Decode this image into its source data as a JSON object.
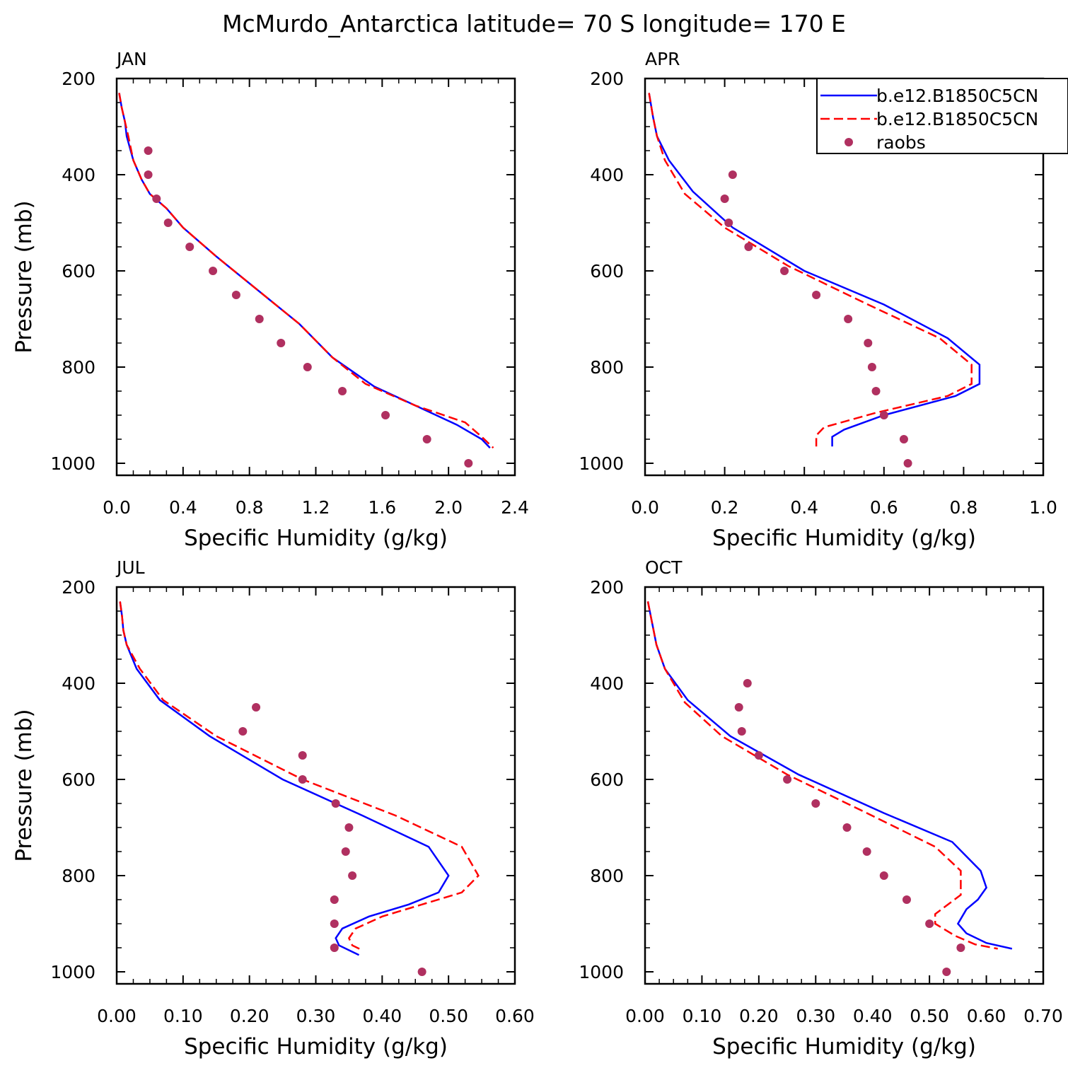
{
  "title": "McMurdo_Antarctica  latitude= 70 S longitude= 170 E",
  "legend": {
    "placement": "top-right of APR panel",
    "entries": [
      {
        "label": "b.e12.B1850C5CN",
        "style": "solid",
        "color": "#0000ff"
      },
      {
        "label": "b.e12.B1850C5CN",
        "style": "dashed",
        "color": "#ff0000"
      },
      {
        "label": "raobs",
        "style": "marker",
        "color": "#b03060"
      }
    ]
  },
  "chart_data": [
    {
      "type": "line",
      "panel": "JAN",
      "xlabel": "Specific Humidity (g/kg)",
      "ylabel": "Pressure (mb)",
      "xlim": [
        0.0,
        2.4
      ],
      "ylim": [
        1025,
        200
      ],
      "xticks": [
        0.0,
        0.4,
        0.8,
        1.2,
        1.6,
        2.0,
        2.4
      ],
      "xtick_labels": [
        "0.0",
        "0.4",
        "0.8",
        "1.2",
        "1.6",
        "2.0",
        "2.4"
      ],
      "yticks": [
        200,
        400,
        600,
        800,
        1000
      ],
      "ytick_labels": [
        "200",
        "400",
        "600",
        "800",
        "1000"
      ],
      "series": [
        {
          "name": "b.e12.B1850C5CN",
          "kind": "solid",
          "color": "#0000ff",
          "points": [
            [
              0.015,
              230
            ],
            [
              0.03,
              260
            ],
            [
              0.05,
              290
            ],
            [
              0.06,
              320
            ],
            [
              0.1,
              370
            ],
            [
              0.15,
              410
            ],
            [
              0.2,
              440
            ],
            [
              0.3,
              470
            ],
            [
              0.4,
              510
            ],
            [
              0.6,
              570
            ],
            [
              0.85,
              640
            ],
            [
              1.1,
              710
            ],
            [
              1.3,
              780
            ],
            [
              1.55,
              840
            ],
            [
              1.8,
              880
            ],
            [
              2.05,
              920
            ],
            [
              2.2,
              950
            ],
            [
              2.25,
              968
            ]
          ]
        },
        {
          "name": "b.e12.B1850C5CN",
          "kind": "dashed",
          "color": "#ff0000",
          "points": [
            [
              0.015,
              230
            ],
            [
              0.03,
              260
            ],
            [
              0.05,
              290
            ],
            [
              0.07,
              320
            ],
            [
              0.1,
              370
            ],
            [
              0.15,
              410
            ],
            [
              0.2,
              440
            ],
            [
              0.3,
              470
            ],
            [
              0.4,
              510
            ],
            [
              0.6,
              570
            ],
            [
              0.85,
              640
            ],
            [
              1.1,
              710
            ],
            [
              1.3,
              780
            ],
            [
              1.5,
              835
            ],
            [
              1.8,
              880
            ],
            [
              2.1,
              915
            ],
            [
              2.2,
              945
            ],
            [
              2.27,
              968
            ]
          ]
        },
        {
          "name": "raobs",
          "kind": "markers",
          "color": "#b03060",
          "points": [
            [
              0.19,
              350
            ],
            [
              0.19,
              400
            ],
            [
              0.24,
              450
            ],
            [
              0.31,
              500
            ],
            [
              0.44,
              550
            ],
            [
              0.58,
              600
            ],
            [
              0.72,
              650
            ],
            [
              0.86,
              700
            ],
            [
              0.99,
              750
            ],
            [
              1.15,
              800
            ],
            [
              1.36,
              850
            ],
            [
              1.62,
              900
            ],
            [
              1.87,
              950
            ],
            [
              2.12,
              1000
            ]
          ]
        }
      ]
    },
    {
      "type": "line",
      "panel": "APR",
      "xlabel": "Specific Humidity (g/kg)",
      "ylabel": "",
      "xlim": [
        0.0,
        1.0
      ],
      "ylim": [
        1025,
        200
      ],
      "xticks": [
        0.0,
        0.2,
        0.4,
        0.6,
        0.8,
        1.0
      ],
      "xtick_labels": [
        "0.0",
        "0.2",
        "0.4",
        "0.6",
        "0.8",
        "1.0"
      ],
      "yticks": [
        200,
        400,
        600,
        800,
        1000
      ],
      "ytick_labels": [
        "200",
        "400",
        "600",
        "800",
        "1000"
      ],
      "series": [
        {
          "name": "b.e12.B1850C5CN",
          "kind": "solid",
          "color": "#0000ff",
          "points": [
            [
              0.01,
              230
            ],
            [
              0.02,
              280
            ],
            [
              0.03,
              320
            ],
            [
              0.06,
              370
            ],
            [
              0.12,
              435
            ],
            [
              0.22,
              510
            ],
            [
              0.4,
              600
            ],
            [
              0.6,
              670
            ],
            [
              0.76,
              740
            ],
            [
              0.84,
              795
            ],
            [
              0.84,
              835
            ],
            [
              0.78,
              860
            ],
            [
              0.6,
              900
            ],
            [
              0.5,
              930
            ],
            [
              0.47,
              945
            ],
            [
              0.47,
              965
            ]
          ]
        },
        {
          "name": "b.e12.B1850C5CN",
          "kind": "dashed",
          "color": "#ff0000",
          "points": [
            [
              0.01,
              230
            ],
            [
              0.02,
              280
            ],
            [
              0.03,
              320
            ],
            [
              0.05,
              370
            ],
            [
              0.1,
              440
            ],
            [
              0.2,
              510
            ],
            [
              0.36,
              590
            ],
            [
              0.56,
              670
            ],
            [
              0.74,
              740
            ],
            [
              0.82,
              795
            ],
            [
              0.82,
              835
            ],
            [
              0.76,
              860
            ],
            [
              0.58,
              895
            ],
            [
              0.45,
              925
            ],
            [
              0.43,
              942
            ],
            [
              0.43,
              965
            ]
          ]
        },
        {
          "name": "raobs",
          "kind": "markers",
          "color": "#b03060",
          "points": [
            [
              0.22,
              400
            ],
            [
              0.2,
              450
            ],
            [
              0.21,
              500
            ],
            [
              0.26,
              550
            ],
            [
              0.35,
              600
            ],
            [
              0.43,
              650
            ],
            [
              0.51,
              700
            ],
            [
              0.56,
              750
            ],
            [
              0.57,
              800
            ],
            [
              0.58,
              850
            ],
            [
              0.6,
              900
            ],
            [
              0.65,
              950
            ],
            [
              0.66,
              1000
            ]
          ]
        }
      ]
    },
    {
      "type": "line",
      "panel": "JUL",
      "xlabel": "Specific Humidity (g/kg)",
      "ylabel": "Pressure (mb)",
      "xlim": [
        0.0,
        0.6
      ],
      "ylim": [
        1025,
        200
      ],
      "xticks": [
        0.0,
        0.1,
        0.2,
        0.3,
        0.4,
        0.5,
        0.6
      ],
      "xtick_labels": [
        "0.00",
        "0.10",
        "0.20",
        "0.30",
        "0.40",
        "0.50",
        "0.60"
      ],
      "yticks": [
        200,
        400,
        600,
        800,
        1000
      ],
      "ytick_labels": [
        "200",
        "400",
        "600",
        "800",
        "1000"
      ],
      "series": [
        {
          "name": "b.e12.B1850C5CN",
          "kind": "solid",
          "color": "#0000ff",
          "points": [
            [
              0.005,
              230
            ],
            [
              0.008,
              260
            ],
            [
              0.01,
              290
            ],
            [
              0.015,
              320
            ],
            [
              0.03,
              370
            ],
            [
              0.065,
              435
            ],
            [
              0.14,
              510
            ],
            [
              0.25,
              600
            ],
            [
              0.37,
              675
            ],
            [
              0.47,
              740
            ],
            [
              0.5,
              800
            ],
            [
              0.485,
              835
            ],
            [
              0.44,
              860
            ],
            [
              0.38,
              885
            ],
            [
              0.34,
              910
            ],
            [
              0.33,
              930
            ],
            [
              0.335,
              945
            ],
            [
              0.365,
              965
            ]
          ]
        },
        {
          "name": "b.e12.B1850C5CN",
          "kind": "dashed",
          "color": "#ff0000",
          "points": [
            [
              0.005,
              230
            ],
            [
              0.008,
              260
            ],
            [
              0.01,
              290
            ],
            [
              0.015,
              320
            ],
            [
              0.035,
              370
            ],
            [
              0.07,
              435
            ],
            [
              0.15,
              510
            ],
            [
              0.28,
              600
            ],
            [
              0.42,
              675
            ],
            [
              0.52,
              740
            ],
            [
              0.545,
              800
            ],
            [
              0.52,
              835
            ],
            [
              0.46,
              860
            ],
            [
              0.4,
              885
            ],
            [
              0.36,
              910
            ],
            [
              0.35,
              930
            ],
            [
              0.355,
              945
            ],
            [
              0.37,
              955
            ]
          ]
        },
        {
          "name": "raobs",
          "kind": "markers",
          "color": "#b03060",
          "points": [
            [
              0.21,
              450
            ],
            [
              0.19,
              500
            ],
            [
              0.28,
              550
            ],
            [
              0.28,
              600
            ],
            [
              0.33,
              650
            ],
            [
              0.35,
              700
            ],
            [
              0.345,
              750
            ],
            [
              0.355,
              800
            ],
            [
              0.328,
              850
            ],
            [
              0.328,
              900
            ],
            [
              0.328,
              950
            ],
            [
              0.46,
              1000
            ]
          ]
        }
      ]
    },
    {
      "type": "line",
      "panel": "OCT",
      "xlabel": "Specific Humidity (g/kg)",
      "ylabel": "",
      "xlim": [
        0.0,
        0.7
      ],
      "ylim": [
        1025,
        200
      ],
      "xticks": [
        0.0,
        0.1,
        0.2,
        0.3,
        0.4,
        0.5,
        0.6,
        0.7
      ],
      "xtick_labels": [
        "0.00",
        "0.10",
        "0.20",
        "0.30",
        "0.40",
        "0.50",
        "0.60",
        "0.70"
      ],
      "yticks": [
        200,
        400,
        600,
        800,
        1000
      ],
      "ytick_labels": [
        "200",
        "400",
        "600",
        "800",
        "1000"
      ],
      "series": [
        {
          "name": "b.e12.B1850C5CN",
          "kind": "solid",
          "color": "#0000ff",
          "points": [
            [
              0.005,
              230
            ],
            [
              0.01,
              260
            ],
            [
              0.015,
              290
            ],
            [
              0.02,
              320
            ],
            [
              0.035,
              370
            ],
            [
              0.075,
              435
            ],
            [
              0.15,
              510
            ],
            [
              0.27,
              590
            ],
            [
              0.42,
              670
            ],
            [
              0.54,
              730
            ],
            [
              0.59,
              790
            ],
            [
              0.6,
              825
            ],
            [
              0.585,
              850
            ],
            [
              0.565,
              870
            ],
            [
              0.55,
              900
            ],
            [
              0.565,
              920
            ],
            [
              0.6,
              940
            ],
            [
              0.645,
              952
            ]
          ]
        },
        {
          "name": "b.e12.B1850C5CN",
          "kind": "dashed",
          "color": "#ff0000",
          "points": [
            [
              0.005,
              230
            ],
            [
              0.01,
              260
            ],
            [
              0.015,
              290
            ],
            [
              0.02,
              320
            ],
            [
              0.035,
              370
            ],
            [
              0.07,
              440
            ],
            [
              0.135,
              510
            ],
            [
              0.25,
              590
            ],
            [
              0.39,
              670
            ],
            [
              0.51,
              740
            ],
            [
              0.555,
              790
            ],
            [
              0.555,
              840
            ],
            [
              0.51,
              880
            ],
            [
              0.51,
              900
            ],
            [
              0.545,
              925
            ],
            [
              0.58,
              943
            ],
            [
              0.62,
              952
            ]
          ]
        },
        {
          "name": "raobs",
          "kind": "markers",
          "color": "#b03060",
          "points": [
            [
              0.18,
              400
            ],
            [
              0.165,
              450
            ],
            [
              0.17,
              500
            ],
            [
              0.2,
              550
            ],
            [
              0.25,
              600
            ],
            [
              0.3,
              650
            ],
            [
              0.355,
              700
            ],
            [
              0.39,
              750
            ],
            [
              0.42,
              800
            ],
            [
              0.46,
              850
            ],
            [
              0.5,
              900
            ],
            [
              0.555,
              950
            ],
            [
              0.53,
              1000
            ]
          ]
        }
      ]
    }
  ]
}
